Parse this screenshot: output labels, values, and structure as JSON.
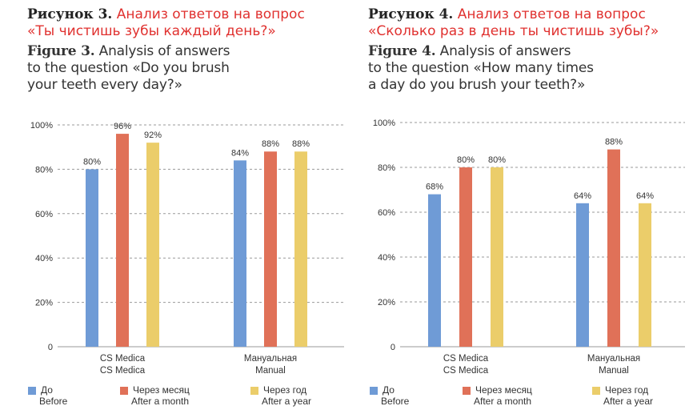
{
  "colors": {
    "before": "#6f9bd6",
    "month": "#e07158",
    "year": "#ebcd6a",
    "title_red": "#e0312f",
    "grid": "#9a9a9a"
  },
  "chart_data": [
    {
      "type": "bar",
      "title_ru_num": "Рисунок 3.",
      "title_ru_lines": [
        "Анализ ответов на вопрос",
        "«Ты чистишь зубы каждый день?»"
      ],
      "title_en_num": "Figure 3.",
      "title_en_lines": [
        "Analysis of answers",
        "to the question «Do you brush",
        "your teeth every day?»"
      ],
      "categories": [
        {
          "line1": "CS Medica",
          "line2": "CS Medica"
        },
        {
          "line1": "Мануальная",
          "line2": "Manual"
        }
      ],
      "series": [
        {
          "name": "До",
          "name_en": "Before",
          "values": [
            80,
            84
          ]
        },
        {
          "name": "Через месяц",
          "name_en": "After a month",
          "values": [
            96,
            88
          ]
        },
        {
          "name": "Через год",
          "name_en": "After a year",
          "values": [
            92,
            88
          ]
        }
      ],
      "data_labels": [
        [
          "80%",
          "84%"
        ],
        [
          "96%",
          "88%"
        ],
        [
          "92%",
          "88%"
        ]
      ],
      "yticks": [
        "0",
        "20%",
        "40%",
        "60%",
        "80%",
        "100%"
      ],
      "ylim": [
        0,
        100
      ]
    },
    {
      "type": "bar",
      "title_ru_num": "Рисунок 4.",
      "title_ru_lines": [
        "Анализ ответов на вопрос",
        "«Сколько раз в день ты чистишь зубы?»"
      ],
      "title_en_num": "Figure 4.",
      "title_en_lines": [
        "Analysis of answers",
        "to the question «How many times",
        "a day do you brush your teeth?»"
      ],
      "categories": [
        {
          "line1": "CS Medica",
          "line2": "CS Medica"
        },
        {
          "line1": "Мануальная",
          "line2": "Manual"
        }
      ],
      "series": [
        {
          "name": "До",
          "name_en": "Before",
          "values": [
            68,
            64
          ]
        },
        {
          "name": "Через месяц",
          "name_en": "After a month",
          "values": [
            80,
            88
          ]
        },
        {
          "name": "Через год",
          "name_en": "After a year",
          "values": [
            80,
            64
          ]
        }
      ],
      "data_labels": [
        [
          "68%",
          "64%"
        ],
        [
          "80%",
          "88%"
        ],
        [
          "80%",
          "64%"
        ]
      ],
      "yticks": [
        "0",
        "20%",
        "40%",
        "60%",
        "80%",
        "100%"
      ],
      "ylim": [
        0,
        100
      ]
    }
  ]
}
